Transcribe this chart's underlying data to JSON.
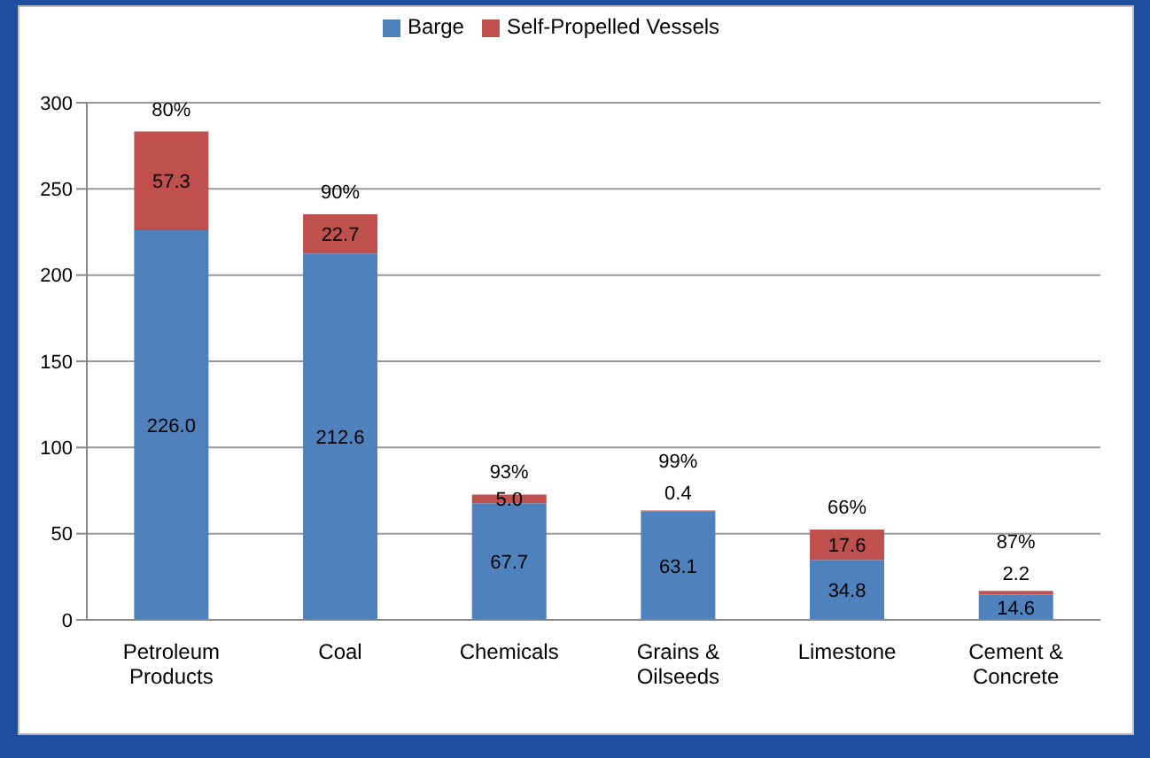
{
  "chart_data": {
    "type": "bar",
    "stacked": true,
    "categories": [
      "Petroleum Products",
      "Coal",
      "Chemicals",
      "Grains & Oilseeds",
      "Limestone",
      "Cement & Concrete"
    ],
    "series": [
      {
        "name": "Barge",
        "color": "#4f81bd",
        "values": [
          226.0,
          212.6,
          67.7,
          63.1,
          34.8,
          14.6
        ],
        "value_labels": [
          "226.0",
          "212.6",
          "67.7",
          "63.1",
          "34.8",
          "14.6"
        ]
      },
      {
        "name": "Self-Propelled Vessels",
        "color": "#c0504d",
        "values": [
          57.3,
          22.7,
          5.0,
          0.4,
          17.6,
          2.2
        ],
        "value_labels": [
          "57.3",
          "22.7",
          "5.0",
          "0.4",
          "17.6",
          "2.2"
        ]
      }
    ],
    "annotations": [
      {
        "text": "80%",
        "x": "Petroleum Products",
        "y": 283.3
      },
      {
        "text": "90%",
        "x": "Coal",
        "y": 235.3
      },
      {
        "text": "93%",
        "x": "Chemicals",
        "y": 72.7
      },
      {
        "text": "99%",
        "x": "Grains & Oilseeds",
        "y": 63.5
      },
      {
        "text": "66%",
        "x": "Limestone",
        "y": 52.4
      },
      {
        "text": "87%",
        "x": "Cement & Concrete",
        "y": 16.8
      }
    ],
    "ylim": [
      0,
      300
    ],
    "yticks": [
      0,
      50,
      100,
      150,
      200,
      250,
      300
    ],
    "grid": "y",
    "legend": "top"
  }
}
